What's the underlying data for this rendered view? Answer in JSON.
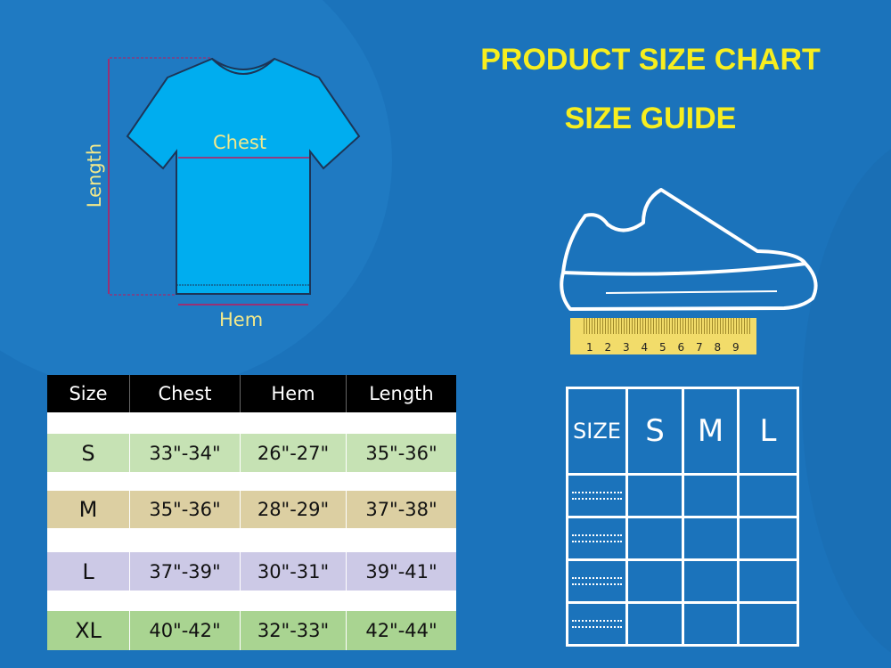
{
  "heading": {
    "title": "PRODUCT SIZE CHART",
    "subtitle": "SIZE GUIDE"
  },
  "tshirt": {
    "chest_label": "Chest",
    "hem_label": "Hem",
    "length_label": "Length"
  },
  "ruler": {
    "ticks": [
      "1",
      "2",
      "3",
      "4",
      "5",
      "6",
      "7",
      "8",
      "9"
    ]
  },
  "size_table": {
    "headers": [
      "Size",
      "Chest",
      "Hem",
      "Length"
    ],
    "rows": [
      {
        "size": "S",
        "chest": "33\"-34\"",
        "hem": "26\"-27\"",
        "length": "35\"-36\"",
        "color": "#c6e2b4"
      },
      {
        "size": "M",
        "chest": "35\"-36\"",
        "hem": "28\"-29\"",
        "length": "37\"-38\"",
        "color": "#dccfa2"
      },
      {
        "size": "L",
        "chest": "37\"-39\"",
        "hem": "30\"-31\"",
        "length": "39\"-41\"",
        "color": "#ccc9e6"
      },
      {
        "size": "XL",
        "chest": "40\"-42\"",
        "hem": "32\"-33\"",
        "length": "42\"-44\"",
        "color": "#a9d491"
      }
    ]
  },
  "shoe_grid": {
    "headers": [
      "SIZE",
      "S",
      "M",
      "L"
    ]
  },
  "colors": {
    "background": "#1b73bb",
    "title": "#f7ee1f",
    "shirt": "#00adef",
    "label": "#f3e98b"
  }
}
